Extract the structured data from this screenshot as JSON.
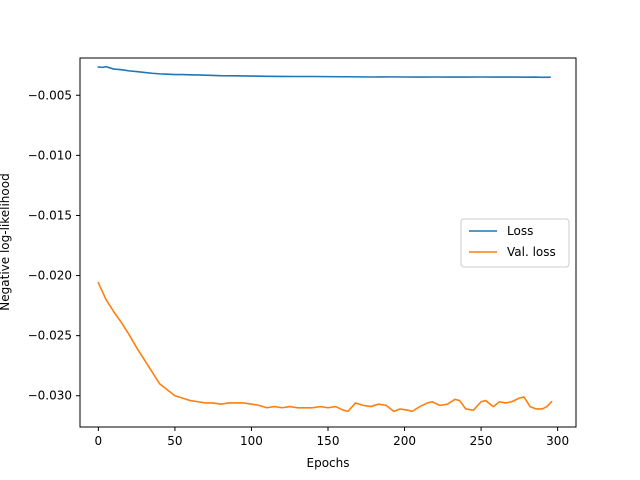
{
  "chart_data": {
    "type": "line",
    "title": "",
    "xlabel": "Epochs",
    "ylabel": "Negative log-likelihood",
    "xlim": [
      -12,
      312
    ],
    "ylim": [
      -0.0326,
      -0.0019
    ],
    "xticks": [
      0,
      50,
      100,
      150,
      200,
      250,
      300
    ],
    "xtick_labels": [
      "0",
      "50",
      "100",
      "150",
      "200",
      "250",
      "300"
    ],
    "yticks": [
      -0.005,
      -0.01,
      -0.015,
      -0.02,
      -0.025,
      -0.03
    ],
    "ytick_labels": [
      "−0.005",
      "−0.010",
      "−0.015",
      "−0.020",
      "−0.025",
      "−0.030"
    ],
    "grid": false,
    "legend_position": "center-right",
    "series": [
      {
        "name": "Loss",
        "color": "#1f77b4",
        "x": [
          0,
          3,
          5,
          10,
          15,
          20,
          25,
          30,
          35,
          40,
          45,
          50,
          55,
          60,
          65,
          70,
          75,
          80,
          90,
          100,
          110,
          120,
          130,
          140,
          150,
          160,
          170,
          180,
          190,
          200,
          210,
          220,
          230,
          240,
          250,
          260,
          270,
          280,
          285,
          290,
          295
        ],
        "values": [
          -0.00265,
          -0.00268,
          -0.00262,
          -0.00282,
          -0.00287,
          -0.00297,
          -0.00303,
          -0.0031,
          -0.00317,
          -0.00322,
          -0.00325,
          -0.00328,
          -0.00328,
          -0.0033,
          -0.00331,
          -0.00333,
          -0.00335,
          -0.00337,
          -0.00338,
          -0.0034,
          -0.00342,
          -0.00343,
          -0.00344,
          -0.00344,
          -0.00345,
          -0.00346,
          -0.00347,
          -0.00348,
          -0.00347,
          -0.00348,
          -0.00349,
          -0.00348,
          -0.00349,
          -0.00349,
          -0.00348,
          -0.00349,
          -0.00349,
          -0.0035,
          -0.00349,
          -0.00351,
          -0.0035
        ]
      },
      {
        "name": "Val. loss",
        "color": "#ff7f0e",
        "x": [
          0,
          5,
          10,
          15,
          20,
          25,
          30,
          35,
          40,
          45,
          50,
          55,
          60,
          65,
          70,
          75,
          80,
          85,
          90,
          95,
          100,
          105,
          110,
          115,
          120,
          125,
          130,
          135,
          140,
          145,
          150,
          155,
          160,
          163,
          168,
          173,
          178,
          183,
          188,
          193,
          197,
          202,
          205,
          210,
          215,
          218,
          223,
          228,
          233,
          236,
          240,
          245,
          250,
          253,
          258,
          262,
          266,
          270,
          275,
          278,
          282,
          286,
          290,
          293,
          296
        ],
        "values": [
          -0.0206,
          -0.022,
          -0.023,
          -0.0239,
          -0.0249,
          -0.026,
          -0.027,
          -0.028,
          -0.029,
          -0.0295,
          -0.03,
          -0.0302,
          -0.0304,
          -0.0305,
          -0.0306,
          -0.0306,
          -0.0307,
          -0.0306,
          -0.0306,
          -0.0306,
          -0.0307,
          -0.0308,
          -0.031,
          -0.0309,
          -0.031,
          -0.0309,
          -0.031,
          -0.031,
          -0.031,
          -0.0309,
          -0.031,
          -0.0309,
          -0.0312,
          -0.0313,
          -0.0306,
          -0.0308,
          -0.0309,
          -0.0307,
          -0.0308,
          -0.0313,
          -0.0311,
          -0.0312,
          -0.0313,
          -0.0309,
          -0.0306,
          -0.0305,
          -0.0308,
          -0.0307,
          -0.0303,
          -0.0304,
          -0.0311,
          -0.0312,
          -0.0305,
          -0.0304,
          -0.0309,
          -0.0305,
          -0.0306,
          -0.0305,
          -0.0302,
          -0.0301,
          -0.0309,
          -0.0311,
          -0.0311,
          -0.0309,
          -0.0305
        ]
      }
    ]
  }
}
